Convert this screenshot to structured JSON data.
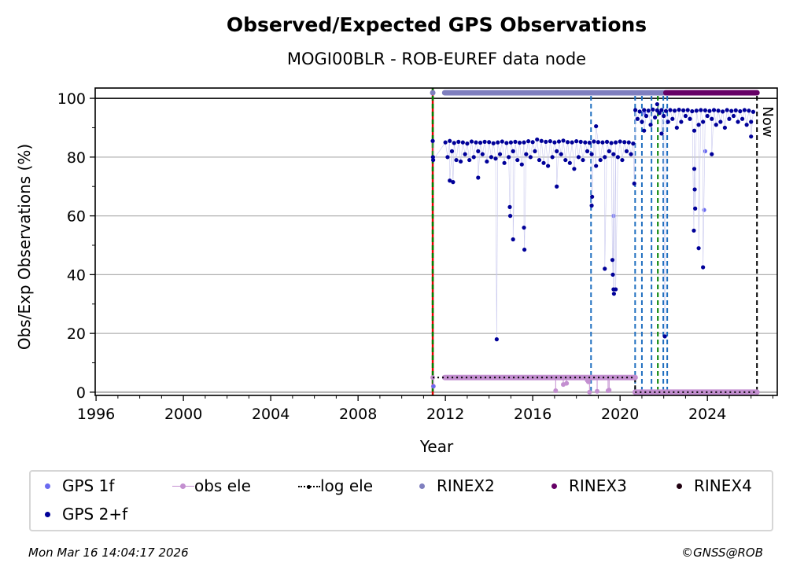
{
  "chart_data": {
    "type": "scatter",
    "title": "Observed/Expected GPS Observations",
    "subtitle": "MOGI00BLR - ROB-EUREF data node",
    "xlabel": "Year",
    "ylabel": "Obs/Exp Observations (%)",
    "xlim": [
      1995.96,
      2027.2
    ],
    "ylim": [
      -1.1,
      103.5
    ],
    "xticks": [
      1996,
      2000,
      2004,
      2008,
      2012,
      2016,
      2020,
      2024
    ],
    "yticks": [
      0,
      20,
      40,
      60,
      80,
      100
    ],
    "grid": "horizontal",
    "now_label": "Now",
    "now_year": 2026.27,
    "legend_placement": "bottom",
    "colors": {
      "gps1f": "#6a6af0",
      "gps2f": "#000099",
      "obs_ele": "#c38fd0",
      "log_ele": "#000000",
      "rinex2": "#7f7fbf",
      "rinex3": "#660066",
      "rinex4": "#200010",
      "red": "#e00000",
      "green": "#008000",
      "blue": "#1f6fc0"
    },
    "vertical_lines": [
      {
        "x": 2011.42,
        "style": "red-green"
      },
      {
        "x": 2018.67,
        "style": "blue"
      },
      {
        "x": 2020.69,
        "style": "blue"
      },
      {
        "x": 2021.0,
        "style": "blue"
      },
      {
        "x": 2021.44,
        "style": "blue"
      },
      {
        "x": 2021.73,
        "style": "green"
      },
      {
        "x": 2021.98,
        "style": "blue"
      },
      {
        "x": 2022.16,
        "style": "blue"
      },
      {
        "x": 2020.69,
        "style": "black-lower"
      },
      {
        "x": 2026.27,
        "style": "black"
      }
    ],
    "rinex_bars": [
      {
        "name": "RINEX2",
        "from": 2011.42,
        "to": 2011.42,
        "y": 101.9
      },
      {
        "name": "RINEX2",
        "from": 2011.97,
        "to": 2022.1,
        "y": 101.9
      },
      {
        "name": "RINEX3",
        "from": 2022.1,
        "to": 2026.27,
        "y": 101.9
      }
    ],
    "log_ele": [
      {
        "from": 2011.42,
        "to": 2020.69,
        "y": 5
      },
      {
        "from": 2020.69,
        "to": 2026.27,
        "y": 0
      }
    ],
    "obs_ele": {
      "segments": [
        {
          "from": 2011.97,
          "to": 2020.69,
          "y": 5
        },
        {
          "from": 2020.69,
          "to": 2026.27,
          "y": 0
        }
      ],
      "points": [
        [
          2011.42,
          5
        ],
        [
          2011.45,
          2
        ],
        [
          2017.05,
          0.5
        ],
        [
          2017.4,
          2.6
        ],
        [
          2017.55,
          3
        ],
        [
          2018.5,
          4
        ],
        [
          2018.55,
          3.5
        ],
        [
          2018.6,
          0
        ],
        [
          2018.95,
          0.3
        ],
        [
          2019.45,
          0.5
        ],
        [
          2019.5,
          0.7
        ]
      ]
    },
    "series": [
      {
        "name": "GPS 1f",
        "points": [
          [
            2011.45,
            2
          ],
          [
            2011.42,
            85.5
          ],
          [
            2021.1,
            95
          ],
          [
            2023.85,
            62
          ],
          [
            2023.9,
            82
          ],
          [
            2024.3,
            96
          ],
          [
            2019.7,
            60
          ]
        ]
      },
      {
        "name": "GPS 2+f",
        "points": [
          [
            2011.42,
            85.5
          ],
          [
            2011.43,
            80
          ],
          [
            2011.44,
            79
          ],
          [
            2012.0,
            85
          ],
          [
            2012.2,
            85.5
          ],
          [
            2012.4,
            84.8
          ],
          [
            2012.6,
            85.2
          ],
          [
            2012.8,
            85
          ],
          [
            2013.0,
            84.6
          ],
          [
            2013.2,
            85.3
          ],
          [
            2013.4,
            85
          ],
          [
            2013.6,
            84.9
          ],
          [
            2013.8,
            85.2
          ],
          [
            2014.0,
            85.1
          ],
          [
            2014.2,
            84.7
          ],
          [
            2014.4,
            85
          ],
          [
            2014.6,
            85.3
          ],
          [
            2014.8,
            84.8
          ],
          [
            2015.0,
            85
          ],
          [
            2015.2,
            85.2
          ],
          [
            2015.4,
            84.9
          ],
          [
            2015.6,
            85
          ],
          [
            2015.8,
            85.4
          ],
          [
            2016.0,
            85.1
          ],
          [
            2016.2,
            86
          ],
          [
            2016.4,
            85.5
          ],
          [
            2016.6,
            85.2
          ],
          [
            2016.8,
            85.4
          ],
          [
            2017.0,
            85
          ],
          [
            2017.2,
            85.3
          ],
          [
            2017.4,
            85.6
          ],
          [
            2017.6,
            85.1
          ],
          [
            2017.8,
            85
          ],
          [
            2018.0,
            85.4
          ],
          [
            2018.2,
            85.2
          ],
          [
            2018.4,
            85
          ],
          [
            2018.6,
            84.9
          ],
          [
            2018.8,
            85.3
          ],
          [
            2019.0,
            85.1
          ],
          [
            2019.2,
            85
          ],
          [
            2019.4,
            85.2
          ],
          [
            2019.6,
            84.8
          ],
          [
            2019.8,
            85
          ],
          [
            2020.0,
            85.3
          ],
          [
            2020.2,
            85.1
          ],
          [
            2020.4,
            85
          ],
          [
            2020.6,
            84.6
          ],
          [
            2012.1,
            80
          ],
          [
            2012.3,
            82
          ],
          [
            2012.5,
            79
          ],
          [
            2012.7,
            78.5
          ],
          [
            2012.9,
            81
          ],
          [
            2013.1,
            79
          ],
          [
            2013.3,
            80
          ],
          [
            2013.5,
            82
          ],
          [
            2013.7,
            81
          ],
          [
            2013.9,
            78.5
          ],
          [
            2014.1,
            80
          ],
          [
            2014.3,
            79.5
          ],
          [
            2014.5,
            81
          ],
          [
            2014.7,
            78
          ],
          [
            2014.9,
            80
          ],
          [
            2015.1,
            82
          ],
          [
            2015.3,
            79
          ],
          [
            2015.5,
            77.5
          ],
          [
            2015.7,
            81
          ],
          [
            2015.9,
            80
          ],
          [
            2016.1,
            82
          ],
          [
            2016.3,
            79
          ],
          [
            2016.5,
            78
          ],
          [
            2016.7,
            77
          ],
          [
            2016.9,
            80
          ],
          [
            2017.1,
            82
          ],
          [
            2017.3,
            81
          ],
          [
            2017.5,
            79
          ],
          [
            2017.7,
            78
          ],
          [
            2017.9,
            76
          ],
          [
            2018.1,
            80
          ],
          [
            2018.3,
            79
          ],
          [
            2018.5,
            82
          ],
          [
            2018.7,
            81
          ],
          [
            2018.9,
            77
          ],
          [
            2019.1,
            79
          ],
          [
            2019.3,
            80
          ],
          [
            2019.5,
            82
          ],
          [
            2019.7,
            81
          ],
          [
            2019.9,
            80
          ],
          [
            2020.1,
            79
          ],
          [
            2020.3,
            82
          ],
          [
            2020.5,
            81
          ],
          [
            2012.2,
            72
          ],
          [
            2012.35,
            71.5
          ],
          [
            2013.5,
            73
          ],
          [
            2014.35,
            18
          ],
          [
            2014.95,
            63
          ],
          [
            2014.97,
            60
          ],
          [
            2015.1,
            52
          ],
          [
            2015.6,
            56
          ],
          [
            2015.62,
            48.5
          ],
          [
            2017.1,
            70
          ],
          [
            2018.7,
            63.5
          ],
          [
            2018.72,
            66.5
          ],
          [
            2018.9,
            90.5
          ],
          [
            2019.3,
            42
          ],
          [
            2019.65,
            45
          ],
          [
            2019.67,
            40
          ],
          [
            2019.7,
            35
          ],
          [
            2019.72,
            33.5
          ],
          [
            2019.8,
            35
          ],
          [
            2020.65,
            71
          ],
          [
            2020.7,
            96
          ],
          [
            2020.9,
            95.5
          ],
          [
            2021.1,
            96
          ],
          [
            2021.3,
            95.8
          ],
          [
            2021.5,
            96.2
          ],
          [
            2021.7,
            95.9
          ],
          [
            2021.9,
            96
          ],
          [
            2022.1,
            95.7
          ],
          [
            2022.3,
            96
          ],
          [
            2022.5,
            95.8
          ],
          [
            2022.7,
            96.1
          ],
          [
            2022.9,
            95.9
          ],
          [
            2023.1,
            96
          ],
          [
            2023.3,
            95.6
          ],
          [
            2023.5,
            95.8
          ],
          [
            2023.7,
            96
          ],
          [
            2023.9,
            95.9
          ],
          [
            2024.1,
            95.7
          ],
          [
            2024.3,
            96
          ],
          [
            2024.5,
            95.8
          ],
          [
            2024.7,
            95.5
          ],
          [
            2024.9,
            96
          ],
          [
            2025.1,
            95.7
          ],
          [
            2025.3,
            95.9
          ],
          [
            2025.5,
            95.6
          ],
          [
            2025.7,
            96
          ],
          [
            2025.9,
            95.8
          ],
          [
            2026.1,
            95.4
          ],
          [
            2020.8,
            93
          ],
          [
            2021.0,
            92
          ],
          [
            2021.2,
            94
          ],
          [
            2021.4,
            91
          ],
          [
            2021.6,
            93.5
          ],
          [
            2021.8,
            95
          ],
          [
            2022.0,
            94
          ],
          [
            2022.2,
            92
          ],
          [
            2022.4,
            93
          ],
          [
            2022.6,
            90
          ],
          [
            2022.8,
            92
          ],
          [
            2023.0,
            94
          ],
          [
            2023.2,
            93
          ],
          [
            2023.4,
            89
          ],
          [
            2023.6,
            91
          ],
          [
            2023.8,
            92
          ],
          [
            2024.0,
            94
          ],
          [
            2024.2,
            93
          ],
          [
            2024.4,
            91
          ],
          [
            2024.6,
            92
          ],
          [
            2024.8,
            90
          ],
          [
            2025.0,
            93
          ],
          [
            2025.2,
            94
          ],
          [
            2025.4,
            92
          ],
          [
            2025.6,
            93
          ],
          [
            2025.8,
            91
          ],
          [
            2026.0,
            92
          ],
          [
            2021.7,
            98
          ],
          [
            2022.05,
            19
          ],
          [
            2023.4,
            76
          ],
          [
            2023.42,
            69
          ],
          [
            2023.44,
            62.5
          ],
          [
            2023.38,
            55
          ],
          [
            2023.6,
            49
          ],
          [
            2023.8,
            42.5
          ],
          [
            2024.2,
            81
          ],
          [
            2026.0,
            87
          ],
          [
            2021.1,
            89
          ],
          [
            2021.9,
            88
          ]
        ]
      }
    ],
    "legend": [
      "GPS 1f",
      "obs ele",
      "log ele",
      "RINEX2",
      "RINEX3",
      "RINEX4",
      "GPS 2+f"
    ]
  },
  "footer": {
    "timestamp": "Mon Mar 16 14:04:17 2026",
    "credit": "©GNSS@ROB"
  }
}
